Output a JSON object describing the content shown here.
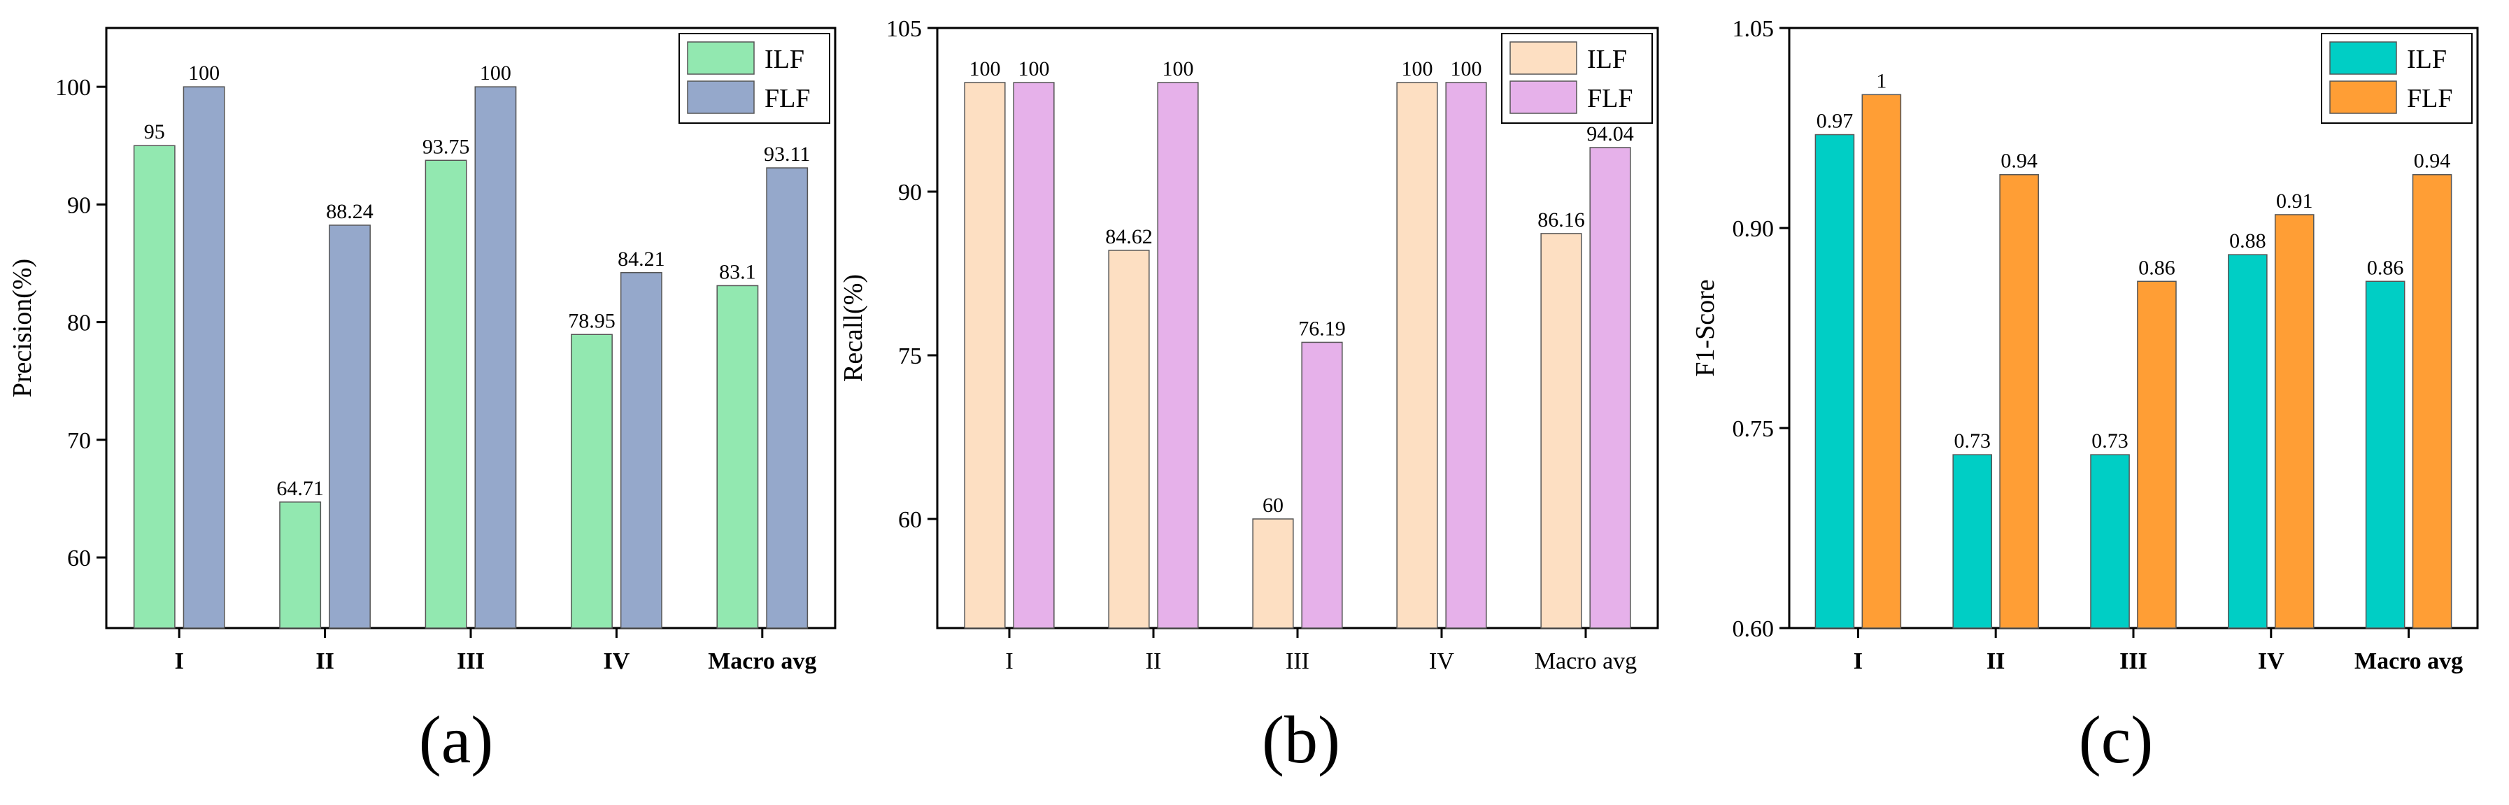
{
  "chart_data": [
    {
      "type": "bar",
      "panel_label": "(a)",
      "title": "",
      "xlabel": "",
      "ylabel": "Precision(%)",
      "ylim": [
        54,
        105
      ],
      "yticks": [
        60,
        70,
        80,
        90,
        100
      ],
      "ytick_labels": [
        "60",
        "70",
        "80",
        "90",
        "100"
      ],
      "categories": [
        "I",
        "II",
        "III",
        "IV",
        "Macro avg"
      ],
      "category_labels_bold": true,
      "legend_position": "top-right",
      "series": [
        {
          "name": "ILF",
          "color": "#92E8B0",
          "values": [
            95,
            64.71,
            93.75,
            78.95,
            83.1
          ],
          "labels": [
            "95",
            "64.71",
            "93.75",
            "78.95",
            "83.1"
          ]
        },
        {
          "name": "FLF",
          "color": "#95A8CB",
          "values": [
            100,
            88.24,
            100,
            84.21,
            93.11
          ],
          "labels": [
            "100",
            "88.24",
            "100",
            "84.21",
            "93.11"
          ]
        }
      ]
    },
    {
      "type": "bar",
      "panel_label": "(b)",
      "title": "",
      "xlabel": "",
      "ylabel": "Recall(%)",
      "ylim": [
        50,
        105
      ],
      "yticks": [
        60,
        75,
        90,
        105
      ],
      "ytick_labels": [
        "60",
        "75",
        "90",
        "105"
      ],
      "categories": [
        "I",
        "II",
        "III",
        "IV",
        "Macro avg"
      ],
      "category_labels_bold": false,
      "legend_position": "top-right",
      "series": [
        {
          "name": "ILF",
          "color": "#FDDFC2",
          "values": [
            100,
            84.62,
            60,
            100,
            86.16
          ],
          "labels": [
            "100",
            "84.62",
            "60",
            "100",
            "86.16"
          ]
        },
        {
          "name": "FLF",
          "color": "#E6B1EA",
          "values": [
            100,
            100,
            76.19,
            100,
            94.04
          ],
          "labels": [
            "100",
            "100",
            "76.19",
            "100",
            "94.04"
          ]
        }
      ]
    },
    {
      "type": "bar",
      "panel_label": "(c)",
      "title": "",
      "xlabel": "",
      "ylabel": "F1-Score",
      "ylim": [
        0.6,
        1.05
      ],
      "yticks": [
        0.6,
        0.75,
        0.9,
        1.05
      ],
      "ytick_labels": [
        "0.60",
        "0.75",
        "0.90",
        "1.05"
      ],
      "categories": [
        "I",
        "II",
        "III",
        "IV",
        "Macro avg"
      ],
      "category_labels_bold": true,
      "legend_position": "top-right",
      "series": [
        {
          "name": "ILF",
          "color": "#00CEC5",
          "values": [
            0.97,
            0.73,
            0.73,
            0.88,
            0.86
          ],
          "labels": [
            "0.97",
            "0.73",
            "0.73",
            "0.88",
            "0.86"
          ]
        },
        {
          "name": "FLF",
          "color": "#FF9E35",
          "values": [
            1.0,
            0.94,
            0.86,
            0.91,
            0.94
          ],
          "labels": [
            "1",
            "0.94",
            "0.86",
            "0.91",
            "0.94"
          ]
        }
      ]
    }
  ]
}
